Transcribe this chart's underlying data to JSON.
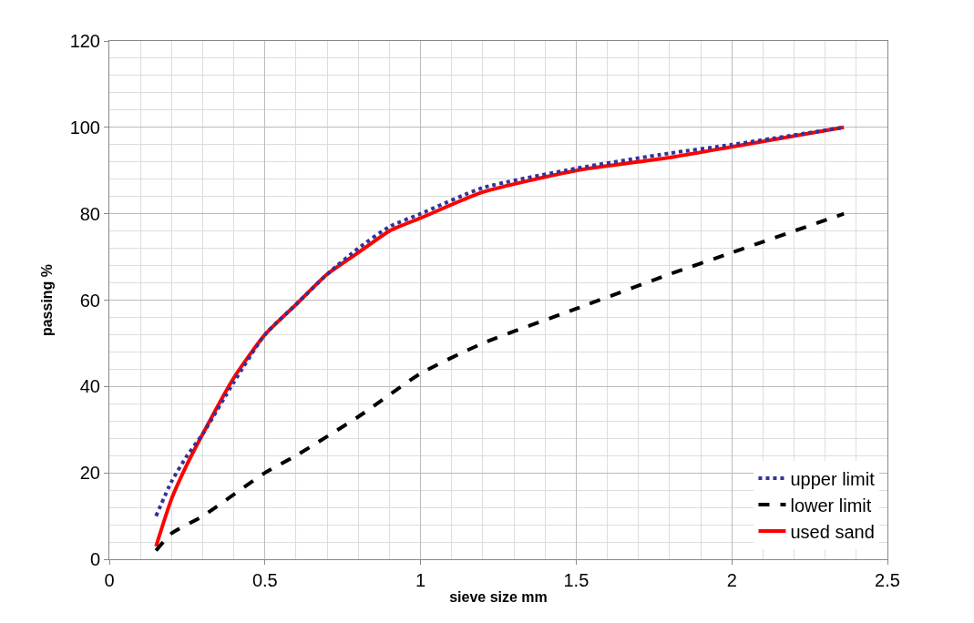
{
  "chart_data": {
    "type": "line",
    "xlabel": "sieve size mm",
    "ylabel": "passing %",
    "xlim": [
      0,
      2.5
    ],
    "xticks": [
      0,
      0.5,
      1,
      1.5,
      2,
      2.5
    ],
    "ylim": [
      0,
      120
    ],
    "yticks": [
      0,
      20,
      40,
      60,
      80,
      100,
      120
    ],
    "grid": true,
    "legend": "bottom right",
    "marker": "none",
    "series": [
      {
        "name": "upper limit",
        "color": "#333399",
        "line_style": "dotted",
        "x": [
          0.15,
          0.2,
          0.25,
          0.3,
          0.4,
          0.5,
          0.6,
          0.7,
          0.8,
          0.9,
          1.0,
          1.2,
          1.5,
          1.8,
          2.0,
          2.36
        ],
        "values": [
          10,
          18,
          24,
          29,
          41,
          52,
          59,
          66,
          72,
          77,
          80,
          86,
          90.5,
          94,
          96,
          100
        ]
      },
      {
        "name": "lower limit",
        "color": "#000000",
        "line_style": "dashed",
        "x": [
          0.15,
          0.2,
          0.3,
          0.5,
          0.6,
          0.8,
          1.0,
          1.2,
          1.5,
          1.8,
          2.0,
          2.36
        ],
        "values": [
          2,
          6,
          10,
          20,
          24,
          33,
          43,
          50,
          58,
          66,
          71,
          80
        ]
      },
      {
        "name": "used sand",
        "color": "#ff0000",
        "line_style": "solid",
        "x": [
          0.15,
          0.2,
          0.25,
          0.3,
          0.4,
          0.5,
          0.6,
          0.7,
          0.8,
          0.9,
          1.0,
          1.2,
          1.5,
          1.8,
          2.0,
          2.36
        ],
        "values": [
          3,
          14,
          22,
          29,
          42,
          52,
          59,
          66,
          71,
          76,
          79,
          85,
          90,
          93,
          95.5,
          100
        ]
      }
    ]
  }
}
